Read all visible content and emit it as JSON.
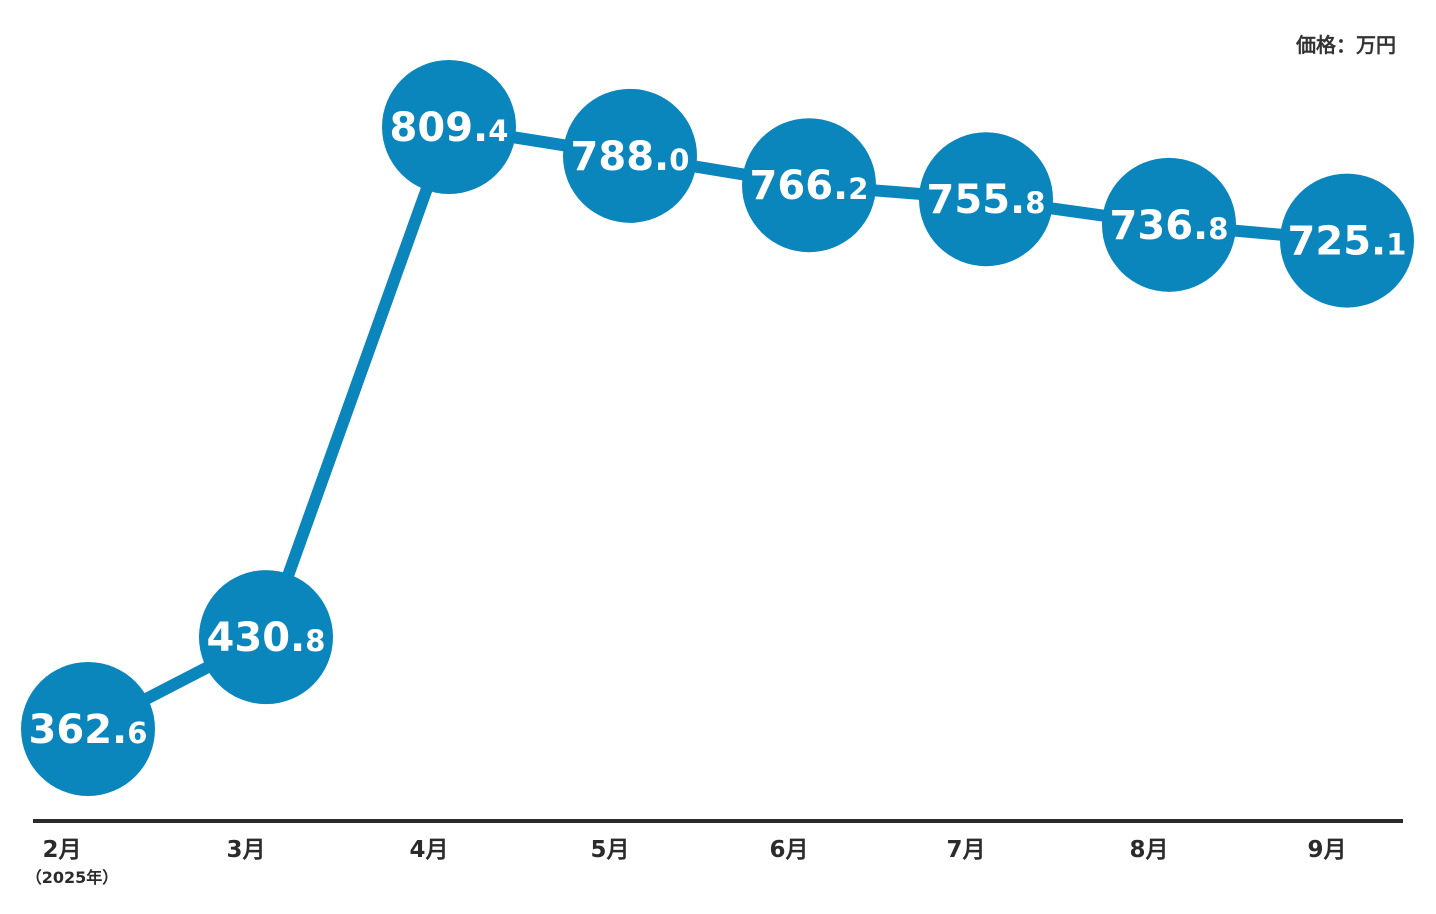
{
  "chart_data": {
    "type": "line",
    "unit_label": "価格：万円",
    "categories": [
      "2月",
      "3月",
      "4月",
      "5月",
      "6月",
      "7月",
      "8月",
      "9月"
    ],
    "first_category_note": "（2025年）",
    "values": [
      362.6,
      430.8,
      809.4,
      788.0,
      766.2,
      755.8,
      736.8,
      725.1
    ],
    "value_labels": [
      {
        "int": "362.",
        "dec": "6"
      },
      {
        "int": "430.",
        "dec": "8"
      },
      {
        "int": "809.",
        "dec": "4"
      },
      {
        "int": "788.",
        "dec": "0"
      },
      {
        "int": "766.",
        "dec": "2"
      },
      {
        "int": "755.",
        "dec": "8"
      },
      {
        "int": "736.",
        "dec": "8"
      },
      {
        "int": "725.",
        "dec": "1"
      }
    ],
    "colors": {
      "series": "#0a86bd",
      "axis": "#2b2b2b",
      "label": "#ffffff"
    },
    "grid": false,
    "legend": "none"
  }
}
